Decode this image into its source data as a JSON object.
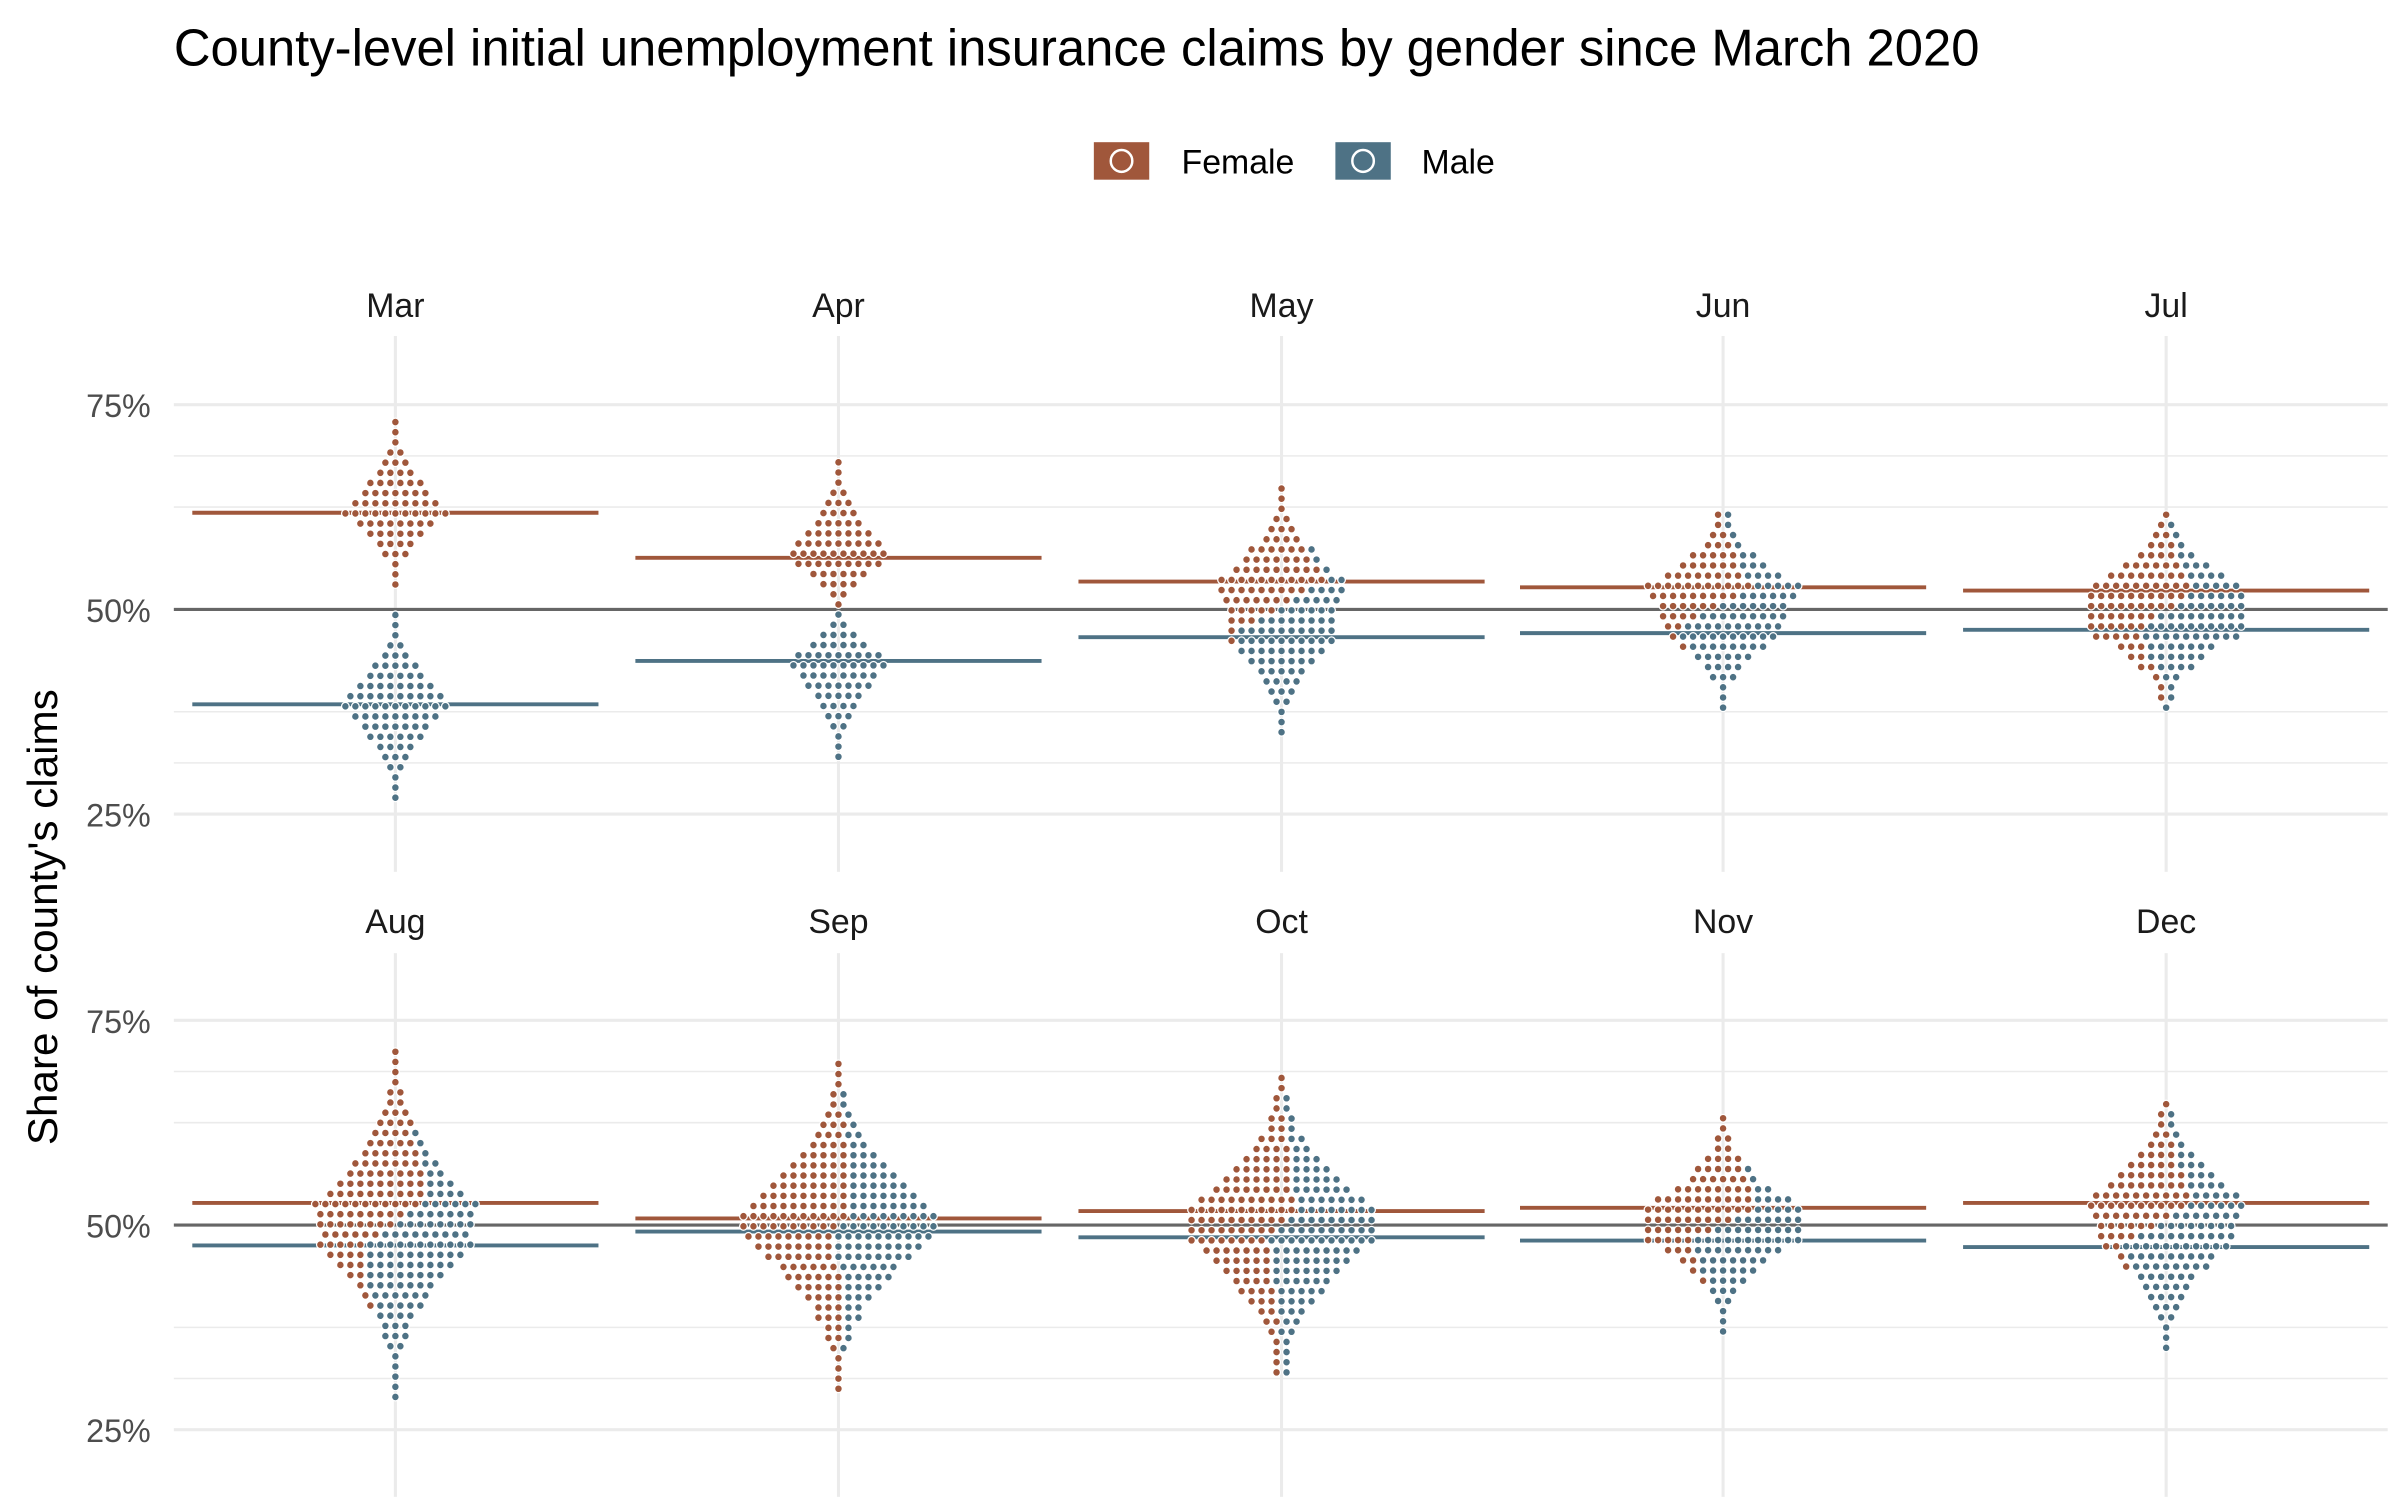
{
  "chart_data": {
    "type": "scatter",
    "subtype": "beeswarm, faceted",
    "title": "County-level initial unemployment insurance claims by gender since March 2020",
    "ylabel": "Share of county's claims",
    "xlabel": "",
    "ylim": [
      22,
      78
    ],
    "yticks": [
      25,
      50,
      75
    ],
    "ytick_labels": [
      "25%",
      "50%",
      "75%"
    ],
    "reference_line": 50,
    "grid": true,
    "legend": {
      "placement": "top",
      "entries": [
        "Female",
        "Male"
      ]
    },
    "colors": {
      "Female": "#A0573B",
      "Male": "#4E7285",
      "reference": "#666666",
      "grid": "#EBEBEB"
    },
    "facets": [
      {
        "label": "Mar",
        "female": {
          "mean": 61.8,
          "min": 53,
          "max": 73
        },
        "male": {
          "mean": 38.4,
          "min": 27,
          "max": 50
        }
      },
      {
        "label": "Apr",
        "female": {
          "mean": 56.3,
          "min": 50,
          "max": 68
        },
        "male": {
          "mean": 43.7,
          "min": 32,
          "max": 50
        }
      },
      {
        "label": "May",
        "female": {
          "mean": 53.4,
          "min": 45,
          "max": 65
        },
        "male": {
          "mean": 46.6,
          "min": 35,
          "max": 58
        }
      },
      {
        "label": "Jun",
        "female": {
          "mean": 52.7,
          "min": 45,
          "max": 62
        },
        "male": {
          "mean": 47.1,
          "min": 38,
          "max": 62
        }
      },
      {
        "label": "Jul",
        "female": {
          "mean": 52.3,
          "min": 39,
          "max": 62
        },
        "male": {
          "mean": 47.5,
          "min": 38,
          "max": 61
        }
      },
      {
        "label": "Aug",
        "female": {
          "mean": 52.7,
          "min": 39,
          "max": 72
        },
        "male": {
          "mean": 47.5,
          "min": 29,
          "max": 62
        }
      },
      {
        "label": "Sep",
        "female": {
          "mean": 50.8,
          "min": 30,
          "max": 70
        },
        "male": {
          "mean": 49.2,
          "min": 34,
          "max": 66
        }
      },
      {
        "label": "Oct",
        "female": {
          "mean": 51.7,
          "min": 32,
          "max": 68
        },
        "male": {
          "mean": 48.5,
          "min": 32,
          "max": 66
        }
      },
      {
        "label": "Nov",
        "female": {
          "mean": 52.1,
          "min": 42,
          "max": 64
        },
        "male": {
          "mean": 48.1,
          "min": 37,
          "max": 58
        }
      },
      {
        "label": "Dec",
        "female": {
          "mean": 52.7,
          "min": 44,
          "max": 65
        },
        "male": {
          "mean": 47.3,
          "min": 35,
          "max": 64
        }
      }
    ]
  }
}
